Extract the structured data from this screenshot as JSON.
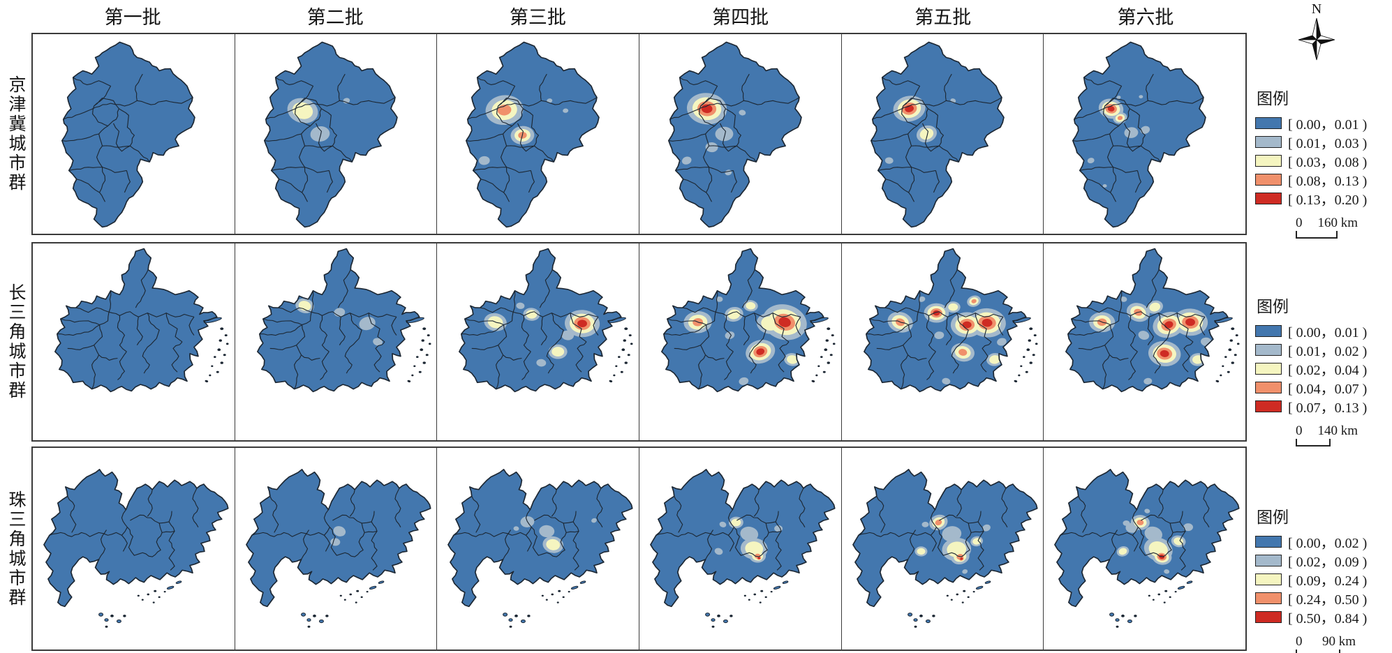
{
  "columns": [
    "第一批",
    "第二批",
    "第三批",
    "第四批",
    "第五批",
    "第六批"
  ],
  "compass": {
    "label": "N"
  },
  "palette": {
    "base": "#4377AE",
    "level1": "#A4B9CB",
    "level2": "#F5F5C0",
    "level3": "#F0906B",
    "level4": "#CE2B23",
    "boundary": "#1C2733"
  },
  "rows": [
    {
      "label": "京津冀城市群",
      "legend": {
        "title": "图例",
        "entries": [
          {
            "color": "#4377AE",
            "range": "[ 0.00，0.01 )"
          },
          {
            "color": "#A4B9CB",
            "range": "[ 0.01，0.03 )"
          },
          {
            "color": "#F5F5C0",
            "range": "[ 0.03，0.08 )"
          },
          {
            "color": "#F0906B",
            "range": "[ 0.08，0.13 )"
          },
          {
            "color": "#CE2B23",
            "range": "[ 0.13，0.20 )"
          }
        ]
      },
      "scalebar": {
        "start": "0",
        "end": "160 km"
      },
      "hotspots": [
        [],
        [
          [
            97,
            115,
            15,
            2
          ],
          [
            122,
            150,
            14,
            1
          ],
          [
            160,
            100,
            5,
            1
          ]
        ],
        [
          [
            97,
            114,
            16,
            3
          ],
          [
            123,
            152,
            10,
            3
          ],
          [
            68,
            190,
            8,
            1
          ],
          [
            162,
            100,
            4,
            1
          ],
          [
            185,
            115,
            4,
            1
          ]
        ],
        [
          [
            97,
            112,
            16,
            4
          ],
          [
            122,
            150,
            13,
            1
          ],
          [
            104,
            170,
            9,
            1
          ],
          [
            68,
            190,
            7,
            1
          ],
          [
            148,
            118,
            5,
            1
          ],
          [
            128,
            208,
            5,
            1
          ]
        ],
        [
          [
            97,
            112,
            13,
            4
          ],
          [
            122,
            150,
            10,
            2
          ],
          [
            68,
            190,
            6,
            1
          ],
          [
            160,
            100,
            4,
            1
          ]
        ],
        [
          [
            97,
            112,
            10,
            4
          ],
          [
            110,
            126,
            6,
            3
          ],
          [
            126,
            148,
            10,
            1
          ],
          [
            146,
            144,
            7,
            1
          ],
          [
            68,
            190,
            5,
            1
          ],
          [
            88,
            228,
            3,
            1
          ],
          [
            140,
            94,
            3,
            1
          ],
          [
            108,
            95,
            3,
            1
          ]
        ]
      ]
    },
    {
      "label": "长三角城市群",
      "legend": {
        "title": "图例",
        "entries": [
          {
            "color": "#4377AE",
            "range": "[ 0.00，0.01 )"
          },
          {
            "color": "#A4B9CB",
            "range": "[ 0.01，0.02 )"
          },
          {
            "color": "#F5F5C0",
            "range": "[ 0.02，0.04 )"
          },
          {
            "color": "#F0906B",
            "range": "[ 0.04，0.07 )"
          },
          {
            "color": "#CE2B23",
            "range": "[ 0.07，0.13 )"
          }
        ]
      },
      "scalebar": {
        "start": "0",
        "end": "140 km"
      },
      "hotspots": [
        [],
        [
          [
            100,
            95,
            9,
            2
          ],
          [
            150,
            105,
            8,
            1
          ],
          [
            190,
            122,
            12,
            1
          ],
          [
            205,
            150,
            7,
            1
          ]
        ],
        [
          [
            84,
            120,
            11,
            2
          ],
          [
            209,
            122,
            14,
            4
          ],
          [
            174,
            165,
            9,
            2
          ],
          [
            136,
            108,
            8,
            2
          ],
          [
            188,
            140,
            9,
            1
          ],
          [
            150,
            182,
            7,
            1
          ],
          [
            120,
            95,
            6,
            1
          ]
        ],
        [
          [
            84,
            120,
            12,
            3
          ],
          [
            209,
            120,
            18,
            4
          ],
          [
            174,
            165,
            12,
            4
          ],
          [
            136,
            108,
            9,
            2
          ],
          [
            160,
            95,
            7,
            2
          ],
          [
            220,
            177,
            8,
            2
          ],
          [
            188,
            122,
            13,
            2
          ],
          [
            130,
            140,
            7,
            1
          ],
          [
            150,
            210,
            7,
            1
          ],
          [
            185,
            225,
            5,
            1
          ],
          [
            115,
            85,
            5,
            1
          ]
        ],
        [
          [
            84,
            120,
            11,
            3
          ],
          [
            136,
            106,
            10,
            4
          ],
          [
            180,
            124,
            13,
            4
          ],
          [
            209,
            121,
            15,
            4
          ],
          [
            174,
            166,
            10,
            3
          ],
          [
            220,
            177,
            8,
            2
          ],
          [
            160,
            97,
            7,
            2
          ],
          [
            190,
            88,
            6,
            3
          ],
          [
            140,
            140,
            7,
            1
          ],
          [
            150,
            210,
            6,
            1
          ],
          [
            115,
            85,
            5,
            1
          ],
          [
            230,
            150,
            7,
            1
          ]
        ],
        [
          [
            84,
            120,
            11,
            3
          ],
          [
            136,
            105,
            10,
            3
          ],
          [
            180,
            124,
            13,
            4
          ],
          [
            211,
            120,
            14,
            4
          ],
          [
            174,
            168,
            13,
            4
          ],
          [
            222,
            177,
            8,
            2
          ],
          [
            160,
            97,
            8,
            2
          ],
          [
            144,
            140,
            8,
            1
          ],
          [
            150,
            210,
            6,
            1
          ],
          [
            115,
            85,
            5,
            1
          ],
          [
            234,
            150,
            8,
            1
          ],
          [
            196,
            60,
            6,
            1
          ]
        ]
      ]
    },
    {
      "label": "珠三角城市群",
      "legend": {
        "title": "图例",
        "entries": [
          {
            "color": "#4377AE",
            "range": "[ 0.00，0.02 )"
          },
          {
            "color": "#A4B9CB",
            "range": "[ 0.02，0.09 )"
          },
          {
            "color": "#F5F5C0",
            "range": "[ 0.09，0.24 )"
          },
          {
            "color": "#F0906B",
            "range": "[ 0.24，0.50 )"
          },
          {
            "color": "#CE2B23",
            "range": "[ 0.50，0.84 )"
          }
        ]
      },
      "scalebar": {
        "start": "0",
        "end": "90 km"
      },
      "hotspots": [
        [],
        [
          [
            150,
            124,
            9,
            1
          ],
          [
            144,
            140,
            7,
            1
          ]
        ],
        [
          [
            130,
            110,
            10,
            1
          ],
          [
            158,
            124,
            11,
            1
          ],
          [
            167,
            144,
            10,
            2
          ],
          [
            226,
            108,
            4,
            1
          ],
          [
            114,
            120,
            4,
            1
          ]
        ],
        [
          [
            139,
            111,
            7,
            2
          ],
          [
            158,
            128,
            13,
            1
          ],
          [
            165,
            150,
            13,
            2
          ],
          [
            170,
            161,
            7,
            3
          ],
          [
            172,
            164,
            3.5,
            4
          ],
          [
            114,
            154,
            6,
            1
          ],
          [
            200,
            120,
            6,
            1
          ],
          [
            120,
            114,
            5,
            1
          ]
        ],
        [
          [
            139,
            111,
            8,
            3
          ],
          [
            158,
            128,
            14,
            1
          ],
          [
            165,
            151,
            14,
            2
          ],
          [
            170,
            162,
            8,
            3
          ],
          [
            172,
            165,
            4,
            4
          ],
          [
            194,
            139,
            6,
            2
          ],
          [
            114,
            154,
            6,
            2
          ],
          [
            208,
            119,
            6,
            1
          ],
          [
            120,
            114,
            5,
            1
          ],
          [
            177,
            184,
            4,
            1
          ]
        ],
        [
          [
            139,
            111,
            8,
            3
          ],
          [
            127,
            119,
            9,
            1
          ],
          [
            158,
            128,
            13,
            1
          ],
          [
            165,
            151,
            14,
            2
          ],
          [
            170,
            162,
            8,
            4
          ],
          [
            194,
            139,
            7,
            2
          ],
          [
            114,
            154,
            6,
            2
          ],
          [
            208,
            118,
            7,
            1
          ],
          [
            119,
            112,
            5,
            1
          ],
          [
            177,
            184,
            4,
            1
          ],
          [
            149,
            94,
            4,
            1
          ]
        ]
      ]
    }
  ]
}
